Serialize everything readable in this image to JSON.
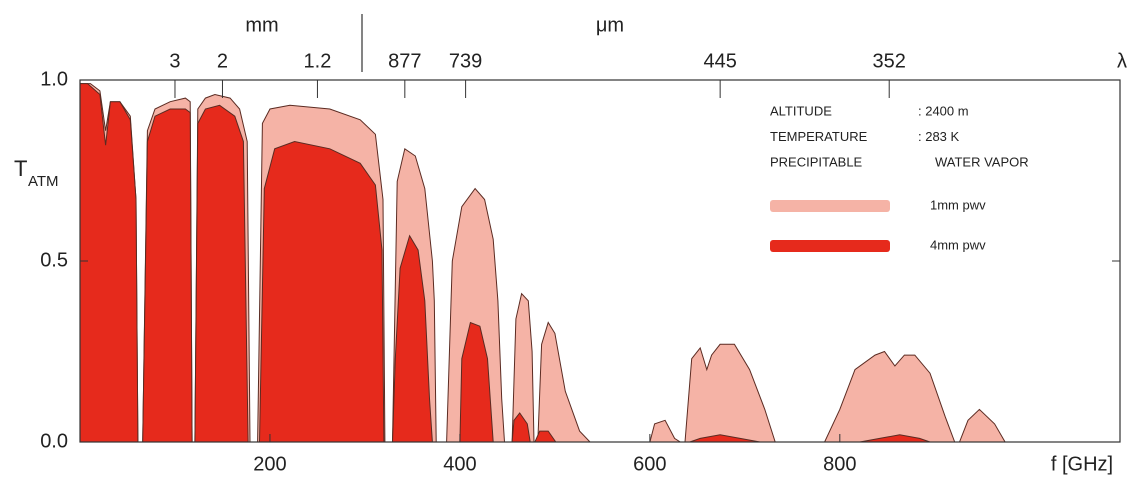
{
  "chart_data": {
    "type": "area",
    "x_label": "f [GHz]",
    "y_label": "T",
    "y_label_sub": "ATM",
    "x2_units": [
      "mm",
      "μm"
    ],
    "x2_label": "λ",
    "xlim": [
      0,
      1095
    ],
    "ylim": [
      0,
      1
    ],
    "xticks": [
      200,
      400,
      600,
      800
    ],
    "yticks": [
      {
        "value": 1,
        "label": "1.0"
      },
      0.5,
      {
        "value": 0,
        "label": "0.0"
      }
    ],
    "x2ticks": [
      {
        "value": 100,
        "label": "3"
      },
      {
        "value": 150,
        "label": "2"
      },
      {
        "value": 250,
        "label": "1.2"
      },
      {
        "value": 342,
        "label": "877"
      },
      {
        "value": 406,
        "label": "739"
      },
      {
        "value": 674,
        "label": "445"
      },
      {
        "value": 852,
        "label": "352"
      }
    ],
    "info_rows": [
      [
        "ALTITUDE",
        ": 2400 m"
      ],
      [
        "TEMPERATURE",
        ":  283 K"
      ],
      [
        "PRECIPITABLE",
        "WATER VAPOR"
      ]
    ],
    "series": [
      {
        "name": "1mm pwv",
        "color": "#f5b3a6",
        "x": [
          0,
          0,
          11,
          21,
          27,
          32,
          42,
          53,
          59,
          61,
          66,
          71,
          79,
          95,
          111,
          116,
          118,
          121,
          124,
          132,
          142,
          158,
          168,
          176,
          179,
          187,
          192,
          200,
          221,
          263,
          295,
          311,
          319,
          321,
          329,
          334,
          342,
          353,
          363,
          371,
          373,
          375,
          386,
          392,
          402,
          416,
          426,
          435,
          440,
          444,
          447,
          455,
          459,
          465,
          472,
          476,
          478,
          482,
          486,
          493,
          500,
          511,
          526,
          537,
          600,
          605,
          616,
          626,
          632,
          637,
          644,
          653,
          660,
          665,
          674,
          689,
          705,
          721,
          732,
          784,
          800,
          816,
          837,
          847,
          858,
          868,
          879,
          895,
          911,
          921,
          926,
          935,
          947,
          963,
          974,
          1095
        ],
        "values": [
          0,
          0.99,
          0.99,
          0.97,
          0.86,
          0.94,
          0.94,
          0.9,
          0.67,
          0,
          0,
          0.86,
          0.92,
          0.94,
          0.95,
          0.94,
          0,
          0,
          0.92,
          0.95,
          0.96,
          0.95,
          0.92,
          0.83,
          0,
          0,
          0.88,
          0.92,
          0.93,
          0.92,
          0.89,
          0.85,
          0.67,
          0,
          0,
          0.72,
          0.81,
          0.79,
          0.7,
          0.5,
          0.39,
          0,
          0,
          0.5,
          0.65,
          0.7,
          0.67,
          0.56,
          0.39,
          0.12,
          0,
          0,
          0.34,
          0.41,
          0.39,
          0.25,
          0,
          0,
          0.27,
          0.33,
          0.3,
          0.14,
          0.03,
          0,
          0,
          0.05,
          0.06,
          0.01,
          0,
          0,
          0.23,
          0.26,
          0.2,
          0.24,
          0.27,
          0.27,
          0.2,
          0.09,
          0,
          0,
          0.09,
          0.2,
          0.24,
          0.25,
          0.21,
          0.24,
          0.24,
          0.19,
          0.07,
          0,
          0,
          0.06,
          0.09,
          0.05,
          0,
          0
        ]
      },
      {
        "name": "4mm pwv",
        "color": "#e62a1c",
        "x": [
          0,
          0,
          8,
          21,
          27,
          32,
          42,
          53,
          59,
          61,
          66,
          71,
          79,
          95,
          111,
          116,
          118,
          121,
          124,
          132,
          147,
          163,
          172,
          177,
          189,
          194,
          205,
          226,
          263,
          295,
          311,
          318,
          320,
          329,
          332,
          337,
          347,
          356,
          363,
          368,
          371,
          400,
          402,
          411,
          421,
          429,
          435,
          455,
          457,
          463,
          471,
          474,
          479,
          484,
          493,
          501,
          642,
          653,
          674,
          695,
          716,
          821,
          842,
          863,
          884,
          895,
          1095
        ],
        "values": [
          0,
          0.99,
          0.99,
          0.96,
          0.82,
          0.94,
          0.94,
          0.89,
          0.67,
          0,
          0,
          0.83,
          0.9,
          0.92,
          0.92,
          0.91,
          0,
          0,
          0.88,
          0.92,
          0.93,
          0.9,
          0.83,
          0,
          0,
          0.7,
          0.81,
          0.83,
          0.81,
          0.77,
          0.71,
          0.53,
          0,
          0,
          0.23,
          0.48,
          0.57,
          0.53,
          0.39,
          0.12,
          0,
          0,
          0.23,
          0.33,
          0.32,
          0.23,
          0,
          0,
          0.06,
          0.08,
          0.05,
          0,
          0,
          0.03,
          0.03,
          0,
          0,
          0.01,
          0.02,
          0.01,
          0,
          0,
          0.01,
          0.02,
          0.01,
          0,
          0
        ]
      }
    ]
  }
}
